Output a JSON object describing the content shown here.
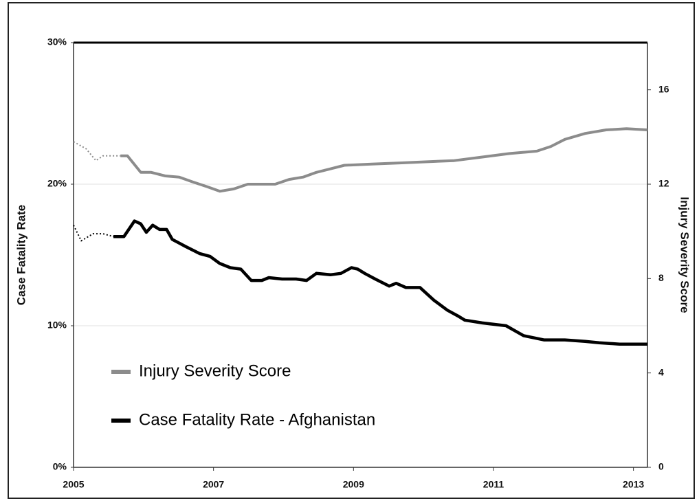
{
  "chart_data": {
    "type": "line",
    "y_label": "Case Fatality Rate",
    "y2_label": "Injury Severity Score",
    "xlim": [
      2005,
      2013.2
    ],
    "xticks": [
      2005,
      2007,
      2009,
      2011,
      2013
    ],
    "ylim": [
      0,
      30
    ],
    "yticks": [
      {
        "value": 0,
        "label": "0%"
      },
      {
        "value": 10,
        "label": "10%"
      },
      {
        "value": 20,
        "label": "20%"
      },
      {
        "value": 30,
        "label": "30%"
      }
    ],
    "y2lim": [
      0,
      18
    ],
    "y2ticks": [
      0,
      4,
      8,
      12,
      16
    ],
    "grid": true,
    "legend": "lower left",
    "series": [
      {
        "name": "Injury Severity Score",
        "color": "#8c8c8c",
        "axis": "y2",
        "dotted_before": 2005.67,
        "x": [
          2005.0,
          2005.18,
          2005.32,
          2005.42,
          2005.52,
          2005.67,
          2005.77,
          2005.96,
          2006.11,
          2006.31,
          2006.51,
          2006.7,
          2006.9,
          2007.09,
          2007.29,
          2007.49,
          2007.69,
          2007.88,
          2008.08,
          2008.28,
          2008.47,
          2008.67,
          2008.87,
          2009.26,
          2009.66,
          2010.05,
          2010.44,
          2010.84,
          2011.23,
          2011.62,
          2011.82,
          2012.02,
          2012.31,
          2012.61,
          2012.9,
          2013.2
        ],
        "values": [
          13.8,
          13.5,
          13.0,
          13.2,
          13.2,
          13.2,
          13.2,
          12.5,
          12.5,
          12.35,
          12.3,
          12.1,
          11.9,
          11.7,
          11.8,
          12.0,
          12.0,
          12.0,
          12.2,
          12.3,
          12.5,
          12.65,
          12.8,
          12.85,
          12.9,
          12.95,
          13.0,
          13.15,
          13.3,
          13.4,
          13.6,
          13.9,
          14.15,
          14.3,
          14.35,
          14.3
        ]
      },
      {
        "name": "Case Fatality Rate - Afghanistan",
        "color": "#000000",
        "dotted_before": 2005.57,
        "x": [
          2005.0,
          2005.11,
          2005.28,
          2005.42,
          2005.57,
          2005.72,
          2005.87,
          2005.96,
          2006.04,
          2006.13,
          2006.23,
          2006.33,
          2006.41,
          2006.6,
          2006.8,
          2006.95,
          2007.09,
          2007.24,
          2007.39,
          2007.54,
          2007.69,
          2007.79,
          2007.98,
          2008.18,
          2008.33,
          2008.47,
          2008.67,
          2008.82,
          2008.97,
          2009.06,
          2009.16,
          2009.31,
          2009.51,
          2009.61,
          2009.75,
          2009.95,
          2010.15,
          2010.34,
          2010.49,
          2010.59,
          2010.84,
          2011.18,
          2011.43,
          2011.72,
          2012.02,
          2012.31,
          2012.51,
          2012.8,
          2013.2
        ],
        "values": [
          17.1,
          16.0,
          16.5,
          16.5,
          16.3,
          16.3,
          17.4,
          17.2,
          16.6,
          17.1,
          16.8,
          16.8,
          16.1,
          15.6,
          15.1,
          14.9,
          14.4,
          14.1,
          14.0,
          13.2,
          13.2,
          13.4,
          13.3,
          13.3,
          13.2,
          13.7,
          13.6,
          13.7,
          14.1,
          14.0,
          13.7,
          13.3,
          12.8,
          13.0,
          12.7,
          12.7,
          11.8,
          11.1,
          10.7,
          10.4,
          10.2,
          10.0,
          9.3,
          9.0,
          9.0,
          8.9,
          8.8,
          8.7,
          8.7
        ]
      }
    ]
  }
}
